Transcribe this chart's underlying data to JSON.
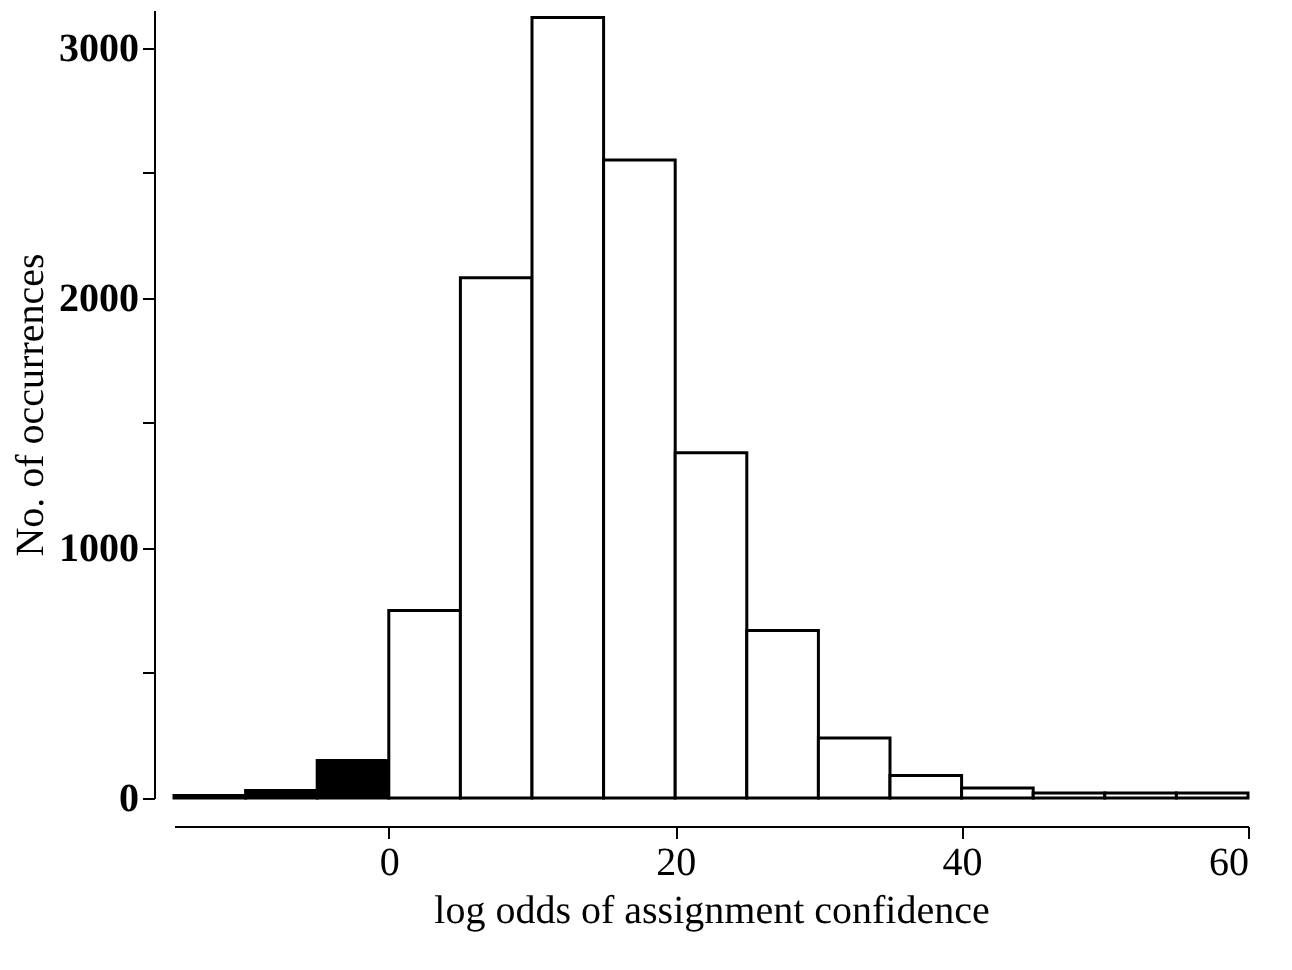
{
  "chart_data": {
    "type": "histogram",
    "xlabel": "log odds of assignment confidence",
    "ylabel": "No. of occurrences",
    "bins": [
      -15,
      -10,
      -5,
      0,
      5,
      10,
      15,
      20,
      25,
      30,
      35,
      40,
      45,
      50,
      55,
      60
    ],
    "values": [
      10,
      30,
      150,
      750,
      2080,
      3120,
      2550,
      1380,
      670,
      240,
      90,
      40,
      20,
      20,
      20
    ],
    "colors": [
      "#000000",
      "#000000",
      "#000000",
      "#ffffff",
      "#ffffff",
      "#ffffff",
      "#ffffff",
      "#ffffff",
      "#ffffff",
      "#ffffff",
      "#ffffff",
      "#ffffff",
      "#ffffff",
      "#ffffff",
      "#ffffff"
    ],
    "xlim": [
      -15,
      60
    ],
    "xticks": [
      0,
      20,
      40,
      60
    ],
    "ylim": [
      0,
      3150
    ],
    "yticks": [
      0,
      {
        "value": 500,
        "label": null
      },
      1000,
      {
        "value": 1500,
        "label": null
      },
      2000,
      {
        "value": 2500,
        "label": null
      },
      3000
    ]
  }
}
